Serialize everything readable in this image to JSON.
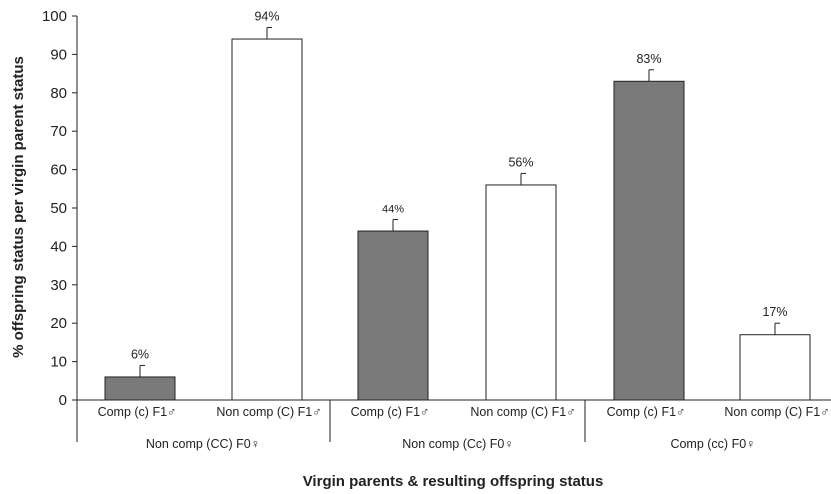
{
  "chart_data": {
    "type": "bar",
    "ylabel": "% offspring status per virgin parent status",
    "xlabel": "Virgin parents & resulting offspring status",
    "ylim": [
      0,
      100
    ],
    "yticks": [
      0,
      10,
      20,
      30,
      40,
      50,
      60,
      70,
      80,
      90,
      100
    ],
    "grid": false,
    "groups": [
      {
        "label": "Non comp (CC) F0♀",
        "bars": [
          {
            "category": "Comp (c) F1♂",
            "value": 6,
            "error": 3,
            "label": "6%",
            "fill": "#7a7a7a"
          },
          {
            "category": "Non comp (C) F1♂",
            "value": 94,
            "error": 3,
            "label": "94%",
            "fill": "#ffffff"
          }
        ]
      },
      {
        "label": "Non comp (Cc) F0♀",
        "bars": [
          {
            "category": "Comp (c) F1♂",
            "value": 44,
            "error": 3,
            "label": "44%",
            "fill": "#7a7a7a"
          },
          {
            "category": "Non comp (C) F1♂",
            "value": 56,
            "error": 3,
            "label": "56%",
            "fill": "#ffffff"
          }
        ]
      },
      {
        "label": "Comp (cc) F0♀",
        "bars": [
          {
            "category": "Comp (c) F1♂",
            "value": 83,
            "error": 3,
            "label": "83%",
            "fill": "#7a7a7a"
          },
          {
            "category": "Non comp (C) F1♂",
            "value": 17,
            "error": 3,
            "label": "17%",
            "fill": "#ffffff"
          }
        ]
      }
    ]
  }
}
